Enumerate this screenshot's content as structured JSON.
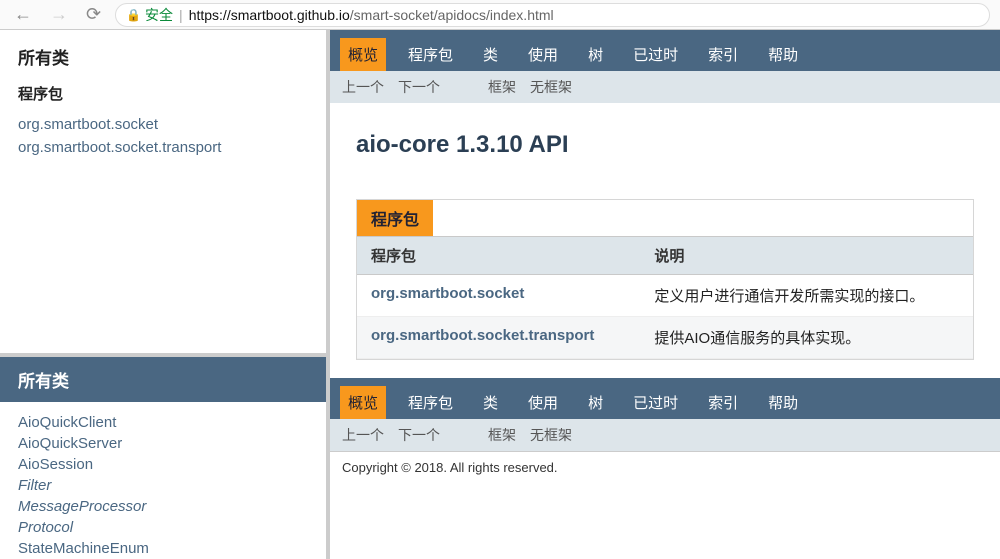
{
  "browser": {
    "safe_label": "安全",
    "url_host": "https://smartboot.github.io",
    "url_path": "/smart-socket/apidocs/index.html"
  },
  "left_top": {
    "title": "所有类",
    "pkg_header": "程序包",
    "packages": [
      "org.smartboot.socket",
      "org.smartboot.socket.transport"
    ]
  },
  "left_bottom": {
    "title": "所有类",
    "classes": [
      {
        "name": "AioQuickClient",
        "italic": false
      },
      {
        "name": "AioQuickServer",
        "italic": false
      },
      {
        "name": "AioSession",
        "italic": false
      },
      {
        "name": "Filter",
        "italic": true
      },
      {
        "name": "MessageProcessor",
        "italic": true
      },
      {
        "name": "Protocol",
        "italic": true
      },
      {
        "name": "StateMachineEnum",
        "italic": false
      }
    ]
  },
  "nav": {
    "tabs": [
      {
        "label": "概览",
        "active": true
      },
      {
        "label": "程序包",
        "active": false
      },
      {
        "label": "类",
        "active": false
      },
      {
        "label": "使用",
        "active": false
      },
      {
        "label": "树",
        "active": false
      },
      {
        "label": "已过时",
        "active": false
      },
      {
        "label": "索引",
        "active": false
      },
      {
        "label": "帮助",
        "active": false
      }
    ],
    "subnav_left": [
      "上一个",
      "下一个"
    ],
    "subnav_right": [
      "框架",
      "无框架"
    ]
  },
  "main": {
    "title": "aio-core 1.3.10 API",
    "table_caption": "程序包",
    "columns": [
      "程序包",
      "说明"
    ],
    "rows": [
      {
        "pkg": "org.smartboot.socket",
        "desc": "定义用户进行通信开发所需实现的接口。"
      },
      {
        "pkg": "org.smartboot.socket.transport",
        "desc": "提供AIO通信服务的具体实现。"
      }
    ]
  },
  "copyright": "Copyright © 2018. All rights reserved.",
  "colors": {
    "navbar_bg": "#4a6782",
    "accent": "#f8981d",
    "subnav_bg": "#dde5ea",
    "link": "#4a6782"
  }
}
